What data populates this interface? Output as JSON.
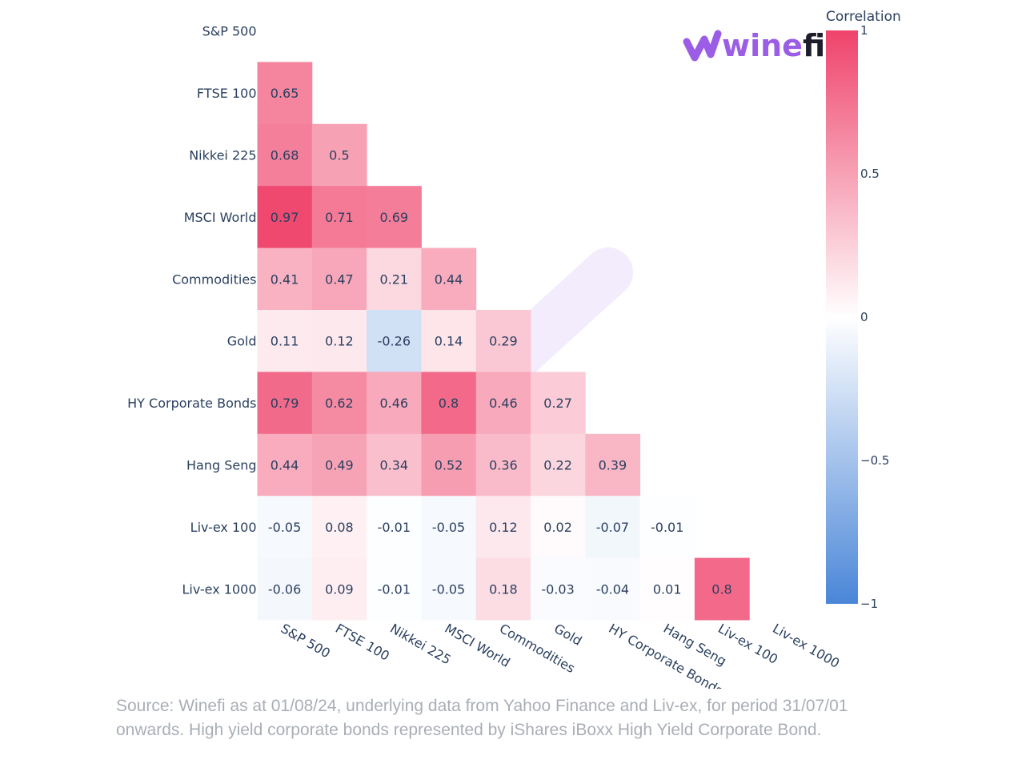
{
  "logo": {
    "text_part1": "wine",
    "text_part2": "fi",
    "icon": "winefi-w-icon",
    "colors": {
      "purple": "#9b5de5",
      "dark": "#1d1d2b"
    }
  },
  "colorbar": {
    "title": "Correlation",
    "ticks": [
      {
        "value": 1,
        "label": "1"
      },
      {
        "value": 0.5,
        "label": "0.5"
      },
      {
        "value": 0,
        "label": "0"
      },
      {
        "value": -0.5,
        "label": "−0.5"
      },
      {
        "value": -1,
        "label": "−1"
      }
    ],
    "color_stops": [
      {
        "value": -1,
        "color": "#4a86d8"
      },
      {
        "value": 0,
        "color": "#ffffff"
      },
      {
        "value": 1,
        "color": "#ef436b"
      }
    ]
  },
  "chart_data": {
    "type": "heatmap",
    "title": "",
    "xlabel": "",
    "ylabel": "",
    "labels": [
      "S&P 500",
      "FTSE 100",
      "Nikkei 225",
      "MSCI World",
      "Commodities",
      "Gold",
      "HY Corporate Bonds",
      "Hang Seng",
      "Liv-ex 100",
      "Liv-ex 1000"
    ],
    "zrange": [
      -1,
      1
    ],
    "rows": [
      {
        "label": "S&P 500",
        "values": []
      },
      {
        "label": "FTSE 100",
        "values": [
          0.65
        ]
      },
      {
        "label": "Nikkei 225",
        "values": [
          0.68,
          0.5
        ]
      },
      {
        "label": "MSCI World",
        "values": [
          0.97,
          0.71,
          0.69
        ]
      },
      {
        "label": "Commodities",
        "values": [
          0.41,
          0.47,
          0.21,
          0.44
        ]
      },
      {
        "label": "Gold",
        "values": [
          0.11,
          0.12,
          -0.26,
          0.14,
          0.29
        ]
      },
      {
        "label": "HY Corporate Bonds",
        "values": [
          0.79,
          0.62,
          0.46,
          0.8,
          0.46,
          0.27
        ]
      },
      {
        "label": "Hang Seng",
        "values": [
          0.44,
          0.49,
          0.34,
          0.52,
          0.36,
          0.22,
          0.39
        ]
      },
      {
        "label": "Liv-ex 100",
        "values": [
          -0.05,
          0.08,
          -0.01,
          -0.05,
          0.12,
          0.02,
          -0.07,
          -0.01
        ]
      },
      {
        "label": "Liv-ex 1000",
        "values": [
          -0.06,
          0.09,
          -0.01,
          -0.05,
          0.18,
          -0.03,
          -0.04,
          0.01,
          0.8
        ]
      }
    ]
  },
  "source": {
    "line1": "Source: Winefi as at 01/08/24, underlying data from Yahoo Finance and Liv-ex, for period 31/07/01",
    "line2": "onwards. High yield corporate bonds represented by iShares iBoxx High Yield Corporate Bond."
  }
}
